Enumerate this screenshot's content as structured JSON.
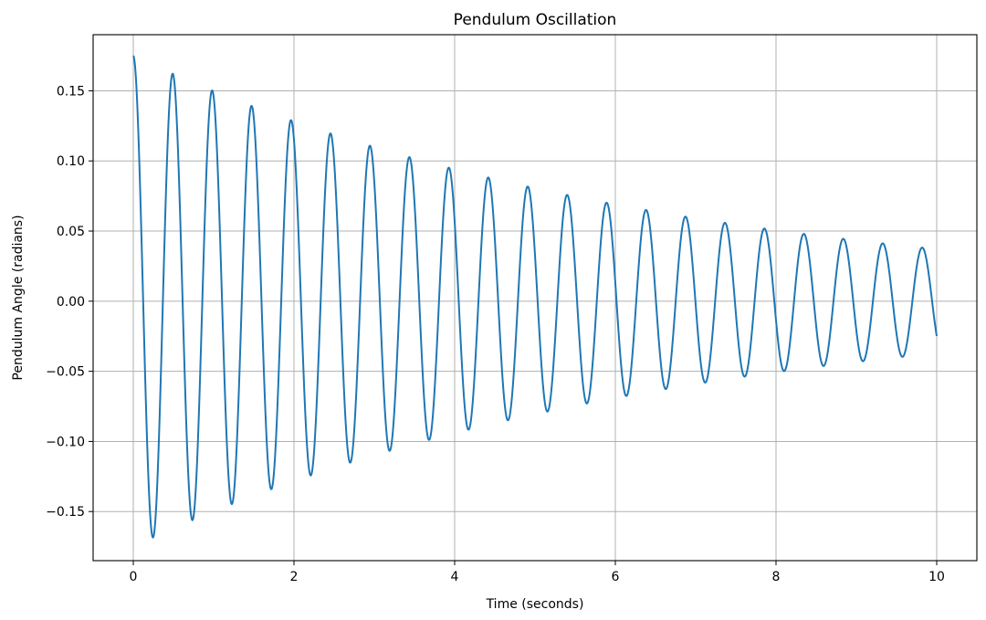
{
  "chart_data": {
    "type": "line",
    "title": "Pendulum Oscillation",
    "xlabel": "Time (seconds)",
    "ylabel": "Pendulum Angle (radians)",
    "xlim": [
      -0.5,
      10.5
    ],
    "ylim": [
      -0.185,
      0.19
    ],
    "xticks": [
      0,
      2,
      4,
      6,
      8,
      10
    ],
    "xtick_labels": [
      "0",
      "2",
      "4",
      "6",
      "8",
      "10"
    ],
    "yticks": [
      -0.15,
      -0.1,
      -0.05,
      0.0,
      0.05,
      0.1,
      0.15
    ],
    "ytick_labels": [
      "−0.15",
      "−0.10",
      "−0.05",
      "0.00",
      "0.05",
      "0.10",
      "0.15"
    ],
    "grid": true,
    "legend": "none",
    "series": [
      {
        "color": "#1f77b4",
        "model": "damped-cosine",
        "amplitude": 0.175,
        "decay": 0.155,
        "period": 0.491,
        "x_start": 0,
        "x_end": 10,
        "samples": 2001,
        "peaks": [
          [
            0.0,
            0.175
          ],
          [
            0.49,
            0.162
          ],
          [
            0.98,
            0.15
          ],
          [
            1.47,
            0.139
          ],
          [
            1.96,
            0.128
          ],
          [
            2.45,
            0.119
          ],
          [
            2.94,
            0.11
          ],
          [
            3.44,
            0.102
          ],
          [
            3.93,
            0.094
          ],
          [
            4.42,
            0.087
          ],
          [
            4.91,
            0.081
          ],
          [
            5.4,
            0.075
          ],
          [
            5.89,
            0.069
          ],
          [
            6.38,
            0.064
          ],
          [
            6.87,
            0.06
          ],
          [
            7.36,
            0.055
          ],
          [
            7.85,
            0.051
          ],
          [
            8.35,
            0.047
          ],
          [
            8.84,
            0.044
          ],
          [
            9.33,
            0.041
          ],
          [
            9.82,
            0.038
          ]
        ],
        "troughs": [
          [
            0.25,
            -0.168
          ],
          [
            0.74,
            -0.155
          ],
          [
            1.23,
            -0.144
          ],
          [
            1.72,
            -0.133
          ],
          [
            2.21,
            -0.123
          ],
          [
            2.7,
            -0.114
          ],
          [
            3.19,
            -0.106
          ],
          [
            3.68,
            -0.098
          ],
          [
            4.17,
            -0.091
          ],
          [
            4.66,
            -0.084
          ],
          [
            5.15,
            -0.078
          ],
          [
            5.65,
            -0.072
          ],
          [
            6.14,
            -0.067
          ],
          [
            6.63,
            -0.062
          ],
          [
            7.12,
            -0.057
          ],
          [
            7.61,
            -0.053
          ],
          [
            8.1,
            -0.049
          ],
          [
            8.59,
            -0.046
          ],
          [
            9.08,
            -0.042
          ],
          [
            9.57,
            -0.039
          ]
        ],
        "end_point": [
          10.0,
          -0.003
        ]
      }
    ]
  }
}
